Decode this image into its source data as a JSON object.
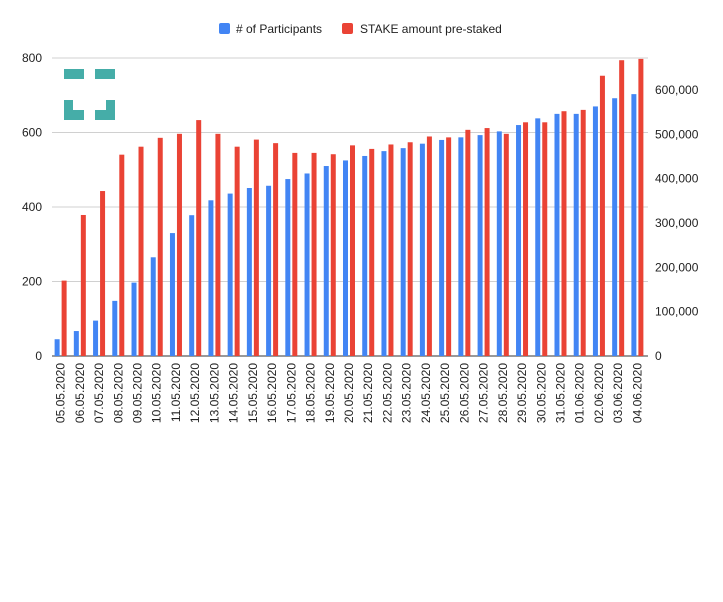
{
  "chart_data": {
    "type": "bar",
    "categories": [
      "05.05.2020",
      "06.05.2020",
      "07.05.2020",
      "08.05.2020",
      "09.05.2020",
      "10.05.2020",
      "11.05.2020",
      "12.05.2020",
      "13.05.2020",
      "14.05.2020",
      "15.05.2020",
      "16.05.2020",
      "17.05.2020",
      "18.05.2020",
      "19.05.2020",
      "20.05.2020",
      "21.05.2020",
      "22.05.2020",
      "23.05.2020",
      "24.05.2020",
      "25.05.2020",
      "26.05.2020",
      "27.05.2020",
      "28.05.2020",
      "29.05.2020",
      "30.05.2020",
      "31.05.2020",
      "01.06.2020",
      "02.06.2020",
      "03.06.2020",
      "04.06.2020"
    ],
    "series": [
      {
        "name": "# of Participants",
        "axis": "left",
        "color": "#4285f4",
        "values": [
          45,
          67,
          95,
          148,
          197,
          265,
          330,
          378,
          418,
          436,
          451,
          457,
          475,
          490,
          510,
          525,
          537,
          550,
          558,
          570,
          580,
          587,
          593,
          603,
          620,
          638,
          650,
          650,
          670,
          692,
          703
        ]
      },
      {
        "name": "STAKE amount pre-staked",
        "axis": "right",
        "color": "#ea4335",
        "values": [
          170000,
          318000,
          372000,
          454000,
          472000,
          492000,
          501000,
          532000,
          501000,
          472000,
          488000,
          480000,
          458000,
          458000,
          455000,
          475000,
          467000,
          477000,
          482000,
          495000,
          493000,
          510000,
          514000,
          501000,
          527000,
          527000,
          552000,
          555000,
          632000,
          667000,
          670000
        ]
      }
    ],
    "left_axis": {
      "ticks": [
        "0",
        "200",
        "400",
        "600",
        "800"
      ],
      "range": [
        0,
        800
      ]
    },
    "right_axis": {
      "ticks": [
        "0",
        "100,000",
        "200,000",
        "300,000",
        "400,000",
        "500,000",
        "600,000"
      ],
      "range": [
        0,
        672000
      ]
    },
    "legend_position": "top-center",
    "grid": true
  },
  "logo": {
    "color": "#45ada8"
  }
}
